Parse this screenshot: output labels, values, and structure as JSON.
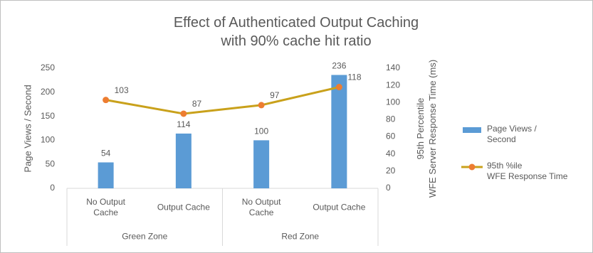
{
  "chart_data": {
    "type": "bar",
    "title": "Effect of Authenticated Output Caching\nwith 90% cache hit ratio",
    "y_label": "Page Views / Second",
    "y2_label": "95th Percentile\nWFE Server Response Time (ms)",
    "categories": [
      "No Output\nCache",
      "Output Cache",
      "No Output\nCache",
      "Output Cache"
    ],
    "groups": [
      {
        "name": "Green Zone",
        "size": 2
      },
      {
        "name": "Red Zone",
        "size": 2
      }
    ],
    "series": [
      {
        "name": "Page Views /\nSecond",
        "type": "bar",
        "color": "#5b9bd5",
        "values": [
          54,
          114,
          100,
          236
        ]
      },
      {
        "name": "95th %ile\nWFE Response Time",
        "type": "line",
        "axis": "y2",
        "color": "#c9a11b",
        "marker_color": "#ed7d31",
        "values": [
          103,
          87,
          97,
          118
        ]
      }
    ],
    "ylim": [
      0,
      250
    ],
    "yticks": [
      0,
      50,
      100,
      150,
      200,
      250
    ],
    "y2lim": [
      0,
      140
    ],
    "y2ticks": [
      0,
      20,
      40,
      60,
      80,
      100,
      120,
      140
    ],
    "grid": false,
    "legend": "right"
  }
}
